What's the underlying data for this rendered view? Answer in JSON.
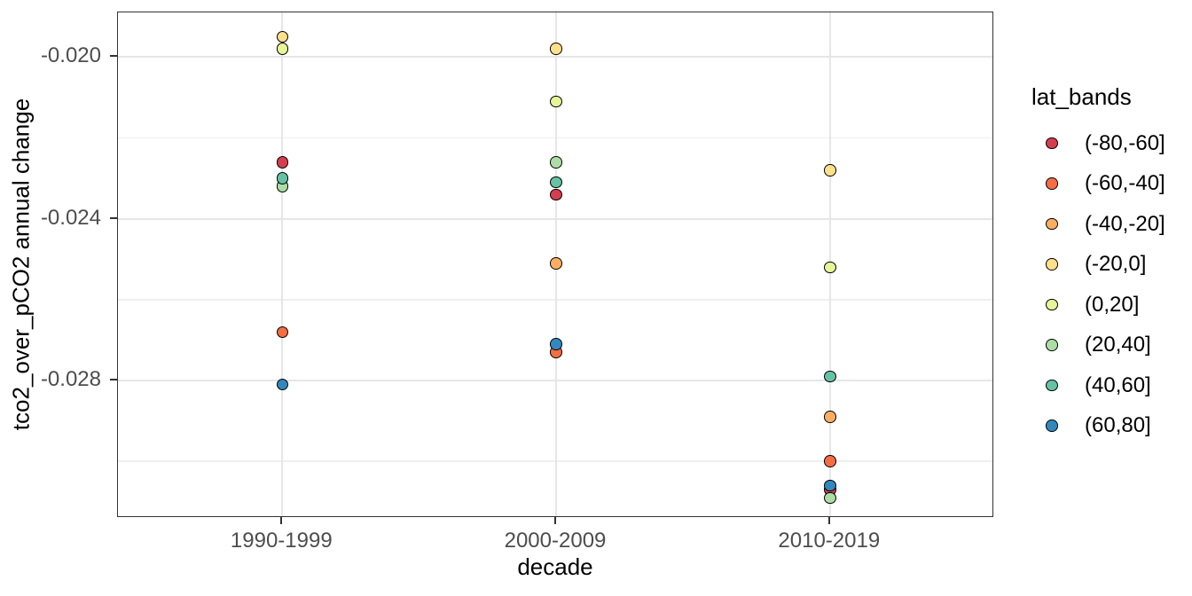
{
  "chart_data": {
    "type": "scatter",
    "title": "",
    "xlabel": "decade",
    "ylabel": "tco2_over_pCO2 annual change",
    "x_categories": [
      "1990-1999",
      "2000-2009",
      "2010-2019"
    ],
    "y_ticks": [
      -0.02,
      -0.024,
      -0.028
    ],
    "y_tick_labels": [
      "-0.020",
      "-0.024",
      "-0.028"
    ],
    "y_minor_ticks": [
      -0.022,
      -0.026,
      -0.03
    ],
    "ylim": [
      -0.0189,
      -0.0314
    ],
    "grid": true,
    "point_outline": "#000000",
    "legend": {
      "title": "lat_bands",
      "position": "right",
      "entries": [
        {
          "label": "(-80,-60]",
          "color": "#D53E4F"
        },
        {
          "label": "(-60,-40]",
          "color": "#F46D43"
        },
        {
          "label": "(-40,-20]",
          "color": "#FDAE61"
        },
        {
          "label": "(-20,0]",
          "color": "#FEE08B"
        },
        {
          "label": "(0,20]",
          "color": "#E6F598"
        },
        {
          "label": "(20,40]",
          "color": "#ABDDA4"
        },
        {
          "label": "(40,60]",
          "color": "#66C2A5"
        },
        {
          "label": "(60,80]",
          "color": "#3288BD"
        }
      ]
    },
    "series": [
      {
        "name": "(-80,-60]",
        "color": "#D53E4F",
        "points": [
          {
            "x": "1990-1999",
            "y": -0.0226
          },
          {
            "x": "2000-2009",
            "y": -0.0234
          },
          {
            "x": "2010-2019",
            "y": -0.0307
          }
        ]
      },
      {
        "name": "(-60,-40]",
        "color": "#F46D43",
        "points": [
          {
            "x": "1990-1999",
            "y": -0.0268
          },
          {
            "x": "2000-2009",
            "y": -0.0273
          },
          {
            "x": "2010-2019",
            "y": -0.03
          }
        ]
      },
      {
        "name": "(-40,-20]",
        "color": "#FDAE61",
        "points": [
          {
            "x": "2000-2009",
            "y": -0.0251
          },
          {
            "x": "2010-2019",
            "y": -0.0289
          }
        ]
      },
      {
        "name": "(-20,0]",
        "color": "#FEE08B",
        "points": [
          {
            "x": "1990-1999",
            "y": -0.0195
          },
          {
            "x": "2000-2009",
            "y": -0.0198
          },
          {
            "x": "2010-2019",
            "y": -0.0228
          }
        ]
      },
      {
        "name": "(0,20]",
        "color": "#E6F598",
        "points": [
          {
            "x": "1990-1999",
            "y": -0.0198
          },
          {
            "x": "2000-2009",
            "y": -0.0211
          },
          {
            "x": "2010-2019",
            "y": -0.0252
          }
        ]
      },
      {
        "name": "(20,40]",
        "color": "#ABDDA4",
        "points": [
          {
            "x": "1990-1999",
            "y": -0.0232
          },
          {
            "x": "2000-2009",
            "y": -0.0226
          },
          {
            "x": "2010-2019",
            "y": -0.0309
          }
        ]
      },
      {
        "name": "(40,60]",
        "color": "#66C2A5",
        "points": [
          {
            "x": "1990-1999",
            "y": -0.023
          },
          {
            "x": "2000-2009",
            "y": -0.0231
          },
          {
            "x": "2010-2019",
            "y": -0.0279
          }
        ]
      },
      {
        "name": "(60,80]",
        "color": "#3288BD",
        "points": [
          {
            "x": "1990-1999",
            "y": -0.0281
          },
          {
            "x": "2000-2009",
            "y": -0.0271
          },
          {
            "x": "2010-2019",
            "y": -0.0306
          }
        ]
      }
    ]
  }
}
